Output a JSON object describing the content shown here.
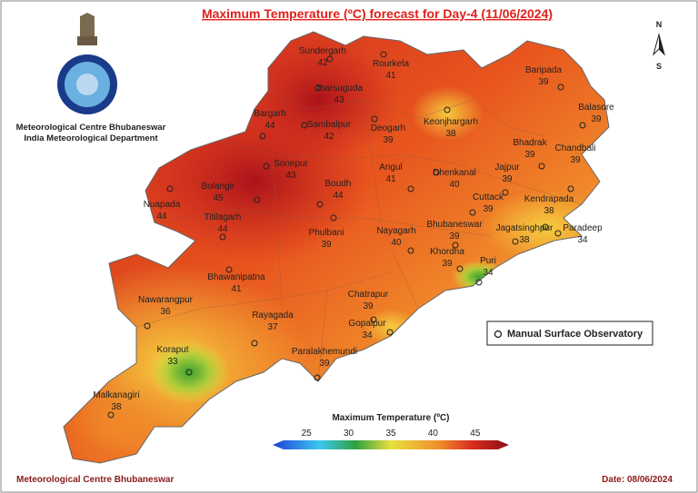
{
  "header": {
    "title": "Maximum Temperature (ºC) forecast for Day-4 (11/06/2024)",
    "organization": "Meteorological Centre Bhubaneswar",
    "department": "India Meteorological Department"
  },
  "compass": {
    "north": "N",
    "south": "S"
  },
  "stations": [
    {
      "name": "Sundergarh",
      "temp": 42
    },
    {
      "name": "Rourkela",
      "temp": 41
    },
    {
      "name": "Jharsuguda",
      "temp": 43
    },
    {
      "name": "Bargarh",
      "temp": 44
    },
    {
      "name": "Sambalpur",
      "temp": 42
    },
    {
      "name": "Deogarh",
      "temp": 39
    },
    {
      "name": "Keonjhargarh",
      "temp": 38
    },
    {
      "name": "Baripada",
      "temp": 39
    },
    {
      "name": "Balasore",
      "temp": 39
    },
    {
      "name": "Bhadrak",
      "temp": 39
    },
    {
      "name": "Chandbali",
      "temp": 39
    },
    {
      "name": "Jajpur",
      "temp": 39
    },
    {
      "name": "Dhenkanal",
      "temp": 40
    },
    {
      "name": "Angul",
      "temp": 41
    },
    {
      "name": "Sonepur",
      "temp": 43
    },
    {
      "name": "Boudh",
      "temp": 44
    },
    {
      "name": "Bolangir",
      "temp": 45
    },
    {
      "name": "Nuapada",
      "temp": 44
    },
    {
      "name": "Titilagarh",
      "temp": 44
    },
    {
      "name": "Phulbani",
      "temp": 39
    },
    {
      "name": "Cuttack",
      "temp": 39
    },
    {
      "name": "Kendrapada",
      "temp": 38
    },
    {
      "name": "Jagatsinghpur",
      "temp": 38
    },
    {
      "name": "Paradeep",
      "temp": 34
    },
    {
      "name": "Nayagarh",
      "temp": 40
    },
    {
      "name": "Bhubaneswar",
      "temp": 39
    },
    {
      "name": "Khordha",
      "temp": 39
    },
    {
      "name": "Puri",
      "temp": 34
    },
    {
      "name": "Bhawanipatna",
      "temp": 41
    },
    {
      "name": "Chatrapur",
      "temp": 39
    },
    {
      "name": "Nawarangpur",
      "temp": 36
    },
    {
      "name": "Rayagada",
      "temp": 37
    },
    {
      "name": "Gopalpur",
      "temp": 34
    },
    {
      "name": "Paralakhemundi",
      "temp": 39
    },
    {
      "name": "Koraput",
      "temp": 33
    },
    {
      "name": "Malkanagiri",
      "temp": 38
    }
  ],
  "legend": {
    "label": "Manual Surface Observatory"
  },
  "colorbar": {
    "title": "Maximum Temperature (ºC)",
    "range": [
      21,
      49
    ],
    "ticks": [
      25,
      30,
      35,
      40,
      45
    ]
  },
  "footer": {
    "left": "Meteorological Centre Bhubaneswar",
    "right": "Date: 08/06/2024"
  }
}
